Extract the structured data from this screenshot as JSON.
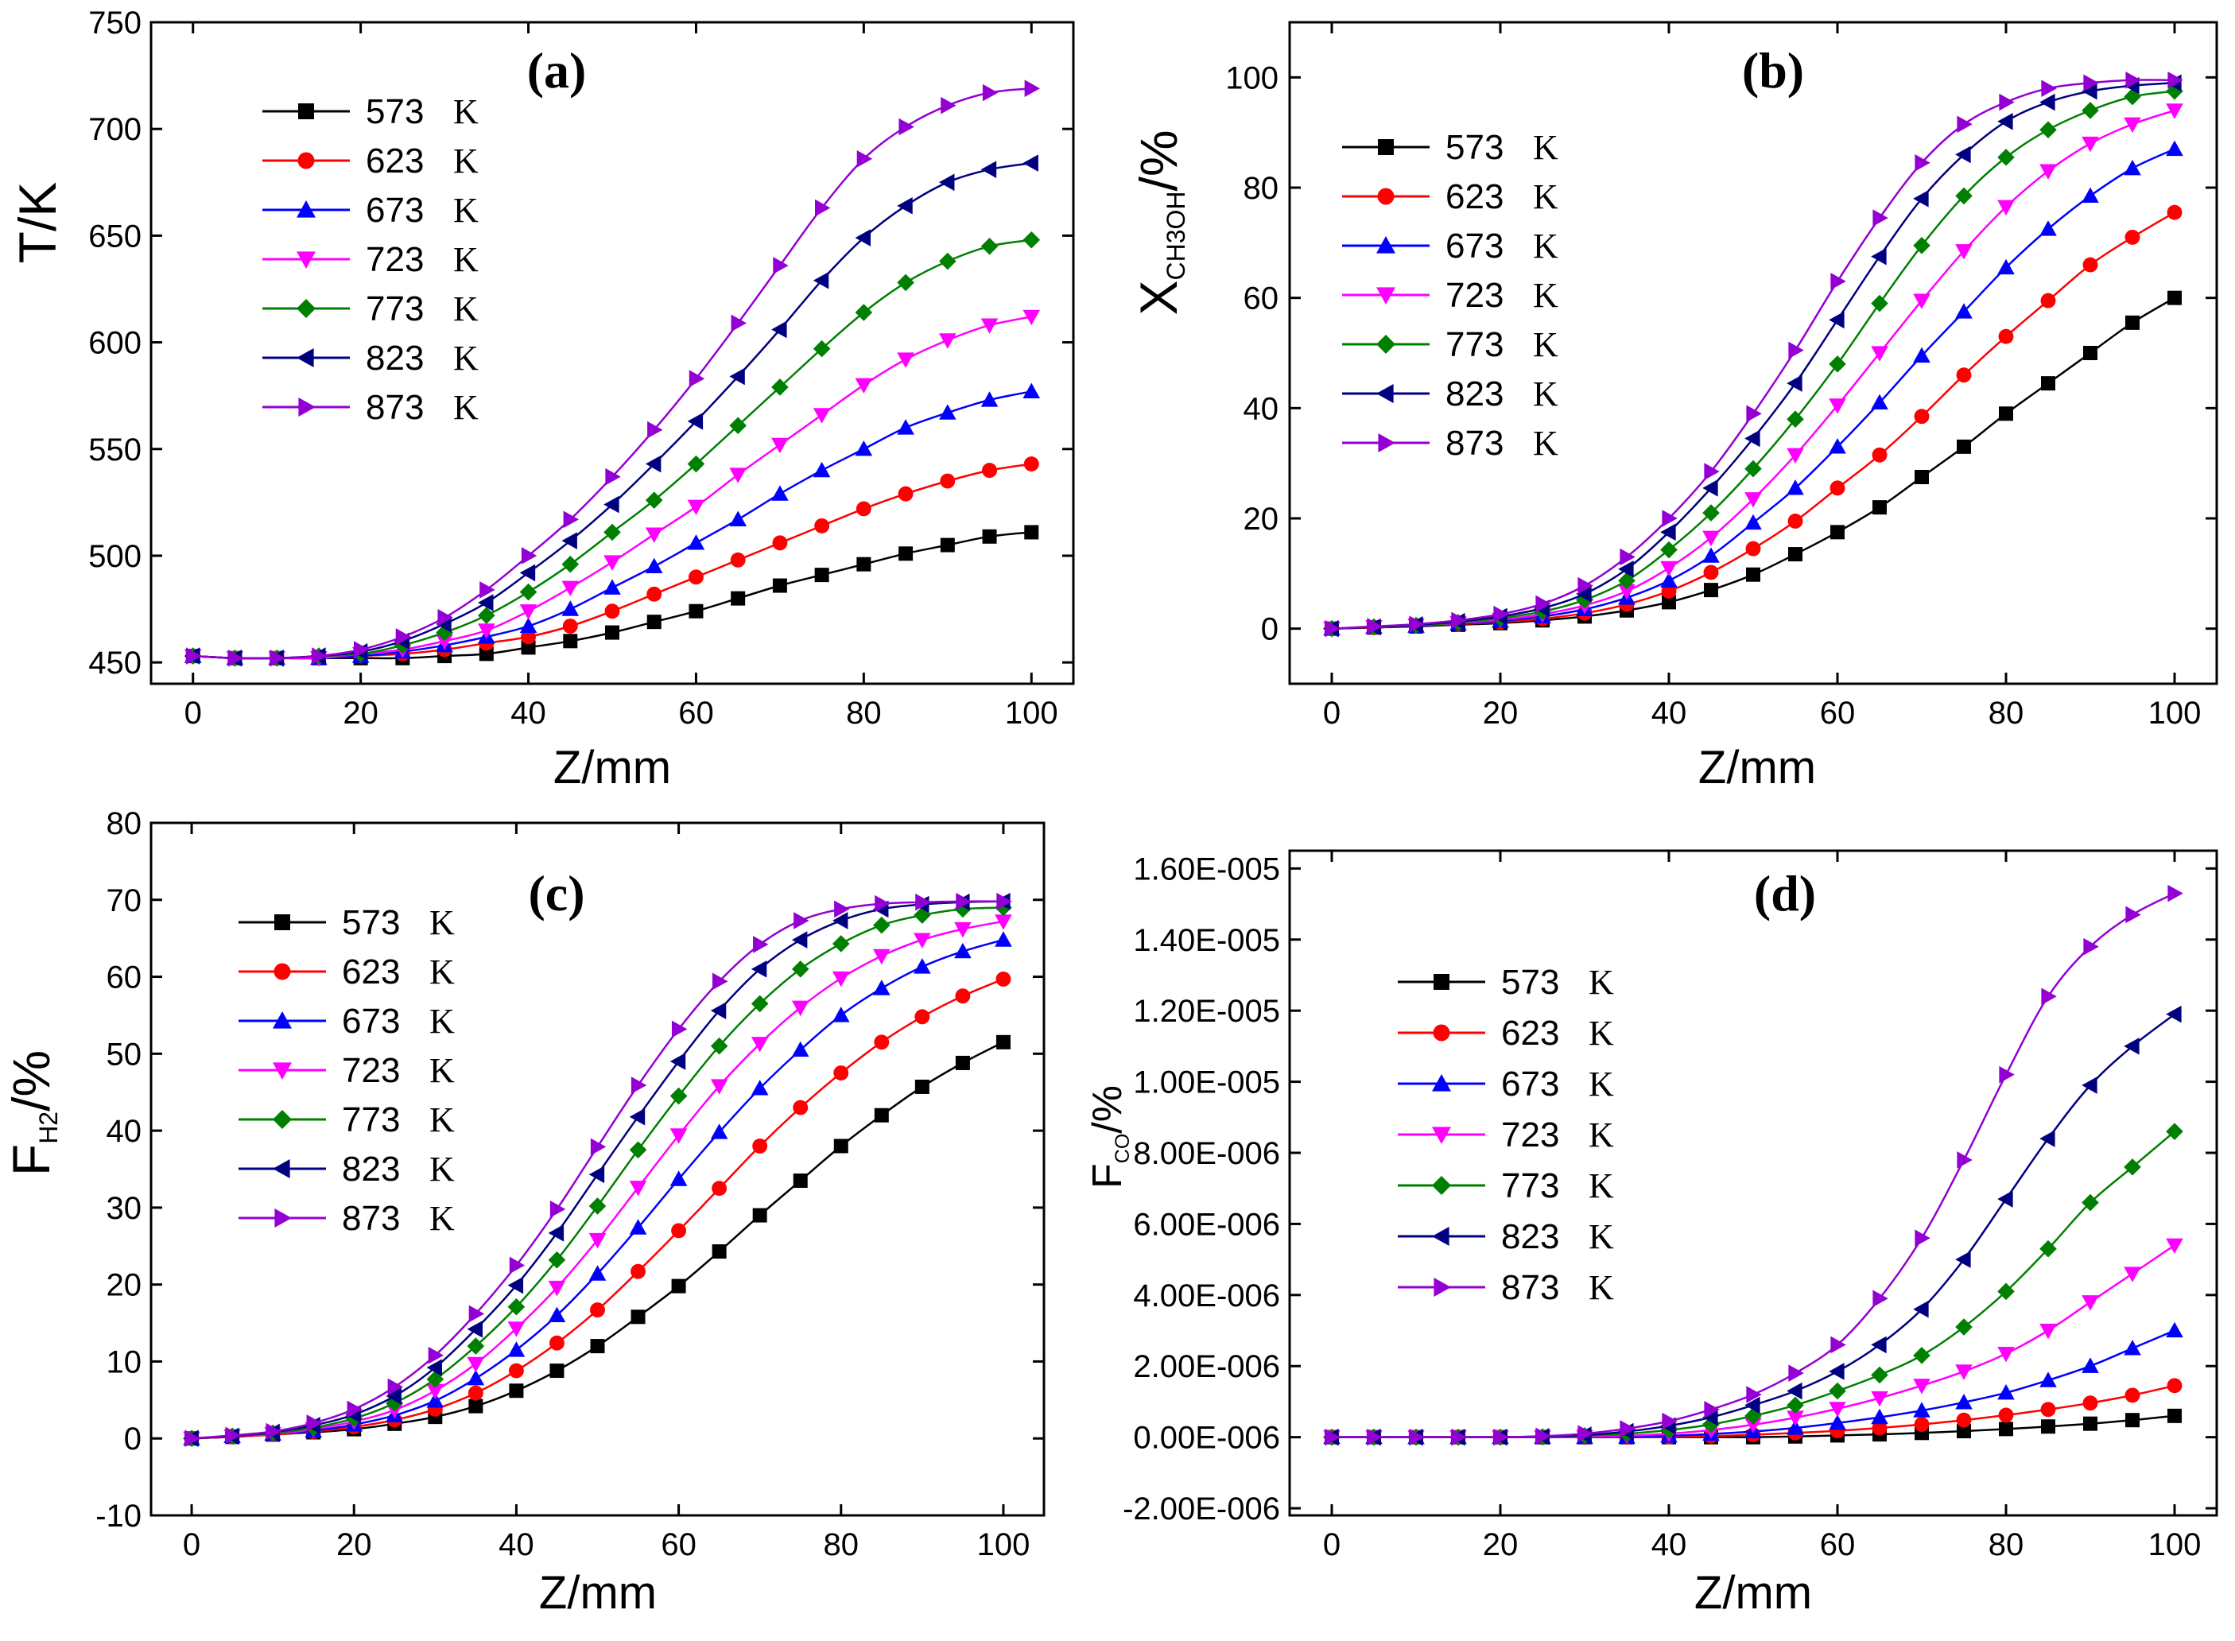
{
  "chart_data": [
    {
      "id": "a",
      "type": "line",
      "panel_label": "(a)",
      "xlabel": "Z/mm",
      "ylabel": "T/K",
      "xlim": [
        -5,
        105
      ],
      "ylim": [
        440,
        750
      ],
      "xticks": [
        0,
        20,
        40,
        60,
        80,
        100
      ],
      "yticks": [
        450,
        500,
        550,
        600,
        650,
        700,
        750
      ],
      "x": [
        0,
        5,
        10,
        15,
        20,
        25,
        30,
        35,
        40,
        45,
        50,
        55,
        60,
        65,
        70,
        75,
        80,
        85,
        90,
        95,
        100
      ],
      "series": [
        {
          "name": "573",
          "unit": "K",
          "color": "#000000",
          "marker": "square",
          "values": [
            453,
            452,
            452,
            452,
            452,
            452,
            453,
            454,
            457,
            460,
            464,
            469,
            474,
            480,
            486,
            491,
            496,
            501,
            505,
            509,
            511
          ]
        },
        {
          "name": "623",
          "unit": "K",
          "color": "#ff0000",
          "marker": "circle",
          "values": [
            453,
            452,
            452,
            452,
            453,
            454,
            456,
            459,
            462,
            467,
            474,
            482,
            490,
            498,
            506,
            514,
            522,
            529,
            535,
            540,
            543
          ]
        },
        {
          "name": "673",
          "unit": "K",
          "color": "#0000ff",
          "marker": "triangle-up",
          "values": [
            453,
            452,
            452,
            452,
            453,
            455,
            458,
            462,
            467,
            475,
            485,
            495,
            506,
            517,
            529,
            540,
            550,
            560,
            567,
            573,
            577
          ]
        },
        {
          "name": "723",
          "unit": "K",
          "color": "#ff00ff",
          "marker": "triangle-down",
          "values": [
            453,
            452,
            452,
            452,
            454,
            456,
            460,
            465,
            474,
            485,
            497,
            510,
            523,
            538,
            552,
            566,
            580,
            592,
            601,
            608,
            612
          ]
        },
        {
          "name": "773",
          "unit": "K",
          "color": "#008000",
          "marker": "diamond",
          "values": [
            453,
            452,
            452,
            453,
            454,
            458,
            464,
            472,
            483,
            496,
            511,
            526,
            543,
            561,
            579,
            597,
            614,
            628,
            638,
            645,
            648
          ]
        },
        {
          "name": "823",
          "unit": "K",
          "color": "#000080",
          "marker": "triangle-left",
          "values": [
            453,
            452,
            452,
            453,
            455,
            460,
            468,
            478,
            492,
            507,
            524,
            543,
            563,
            584,
            606,
            629,
            649,
            664,
            675,
            681,
            684
          ]
        },
        {
          "name": "873",
          "unit": "K",
          "color": "#9400d3",
          "marker": "triangle-right",
          "values": [
            453,
            452,
            452,
            453,
            456,
            462,
            471,
            484,
            500,
            517,
            537,
            559,
            583,
            609,
            636,
            663,
            686,
            701,
            711,
            717,
            719
          ]
        }
      ]
    },
    {
      "id": "b",
      "type": "line",
      "panel_label": "(b)",
      "xlabel": "Z/mm",
      "ylabel": "X",
      "ylabel_sub": "CH3OH",
      "ylabel_suffix": "/%",
      "xlim": [
        -5,
        105
      ],
      "ylim": [
        -10,
        110
      ],
      "xticks": [
        0,
        20,
        40,
        60,
        80,
        100
      ],
      "yticks": [
        0,
        20,
        40,
        60,
        80,
        100
      ],
      "x": [
        0,
        5,
        10,
        15,
        20,
        25,
        30,
        35,
        40,
        45,
        50,
        55,
        60,
        65,
        70,
        75,
        80,
        85,
        90,
        95,
        100
      ],
      "series": [
        {
          "name": "573",
          "unit": "K",
          "color": "#000000",
          "marker": "square",
          "values": [
            0,
            0.2,
            0.4,
            0.7,
            1.0,
            1.5,
            2.2,
            3.3,
            4.8,
            7.0,
            9.8,
            13.5,
            17.5,
            22,
            27.5,
            33,
            39,
            44.5,
            50,
            55.5,
            60
          ]
        },
        {
          "name": "623",
          "unit": "K",
          "color": "#ff0000",
          "marker": "circle",
          "values": [
            0,
            0.2,
            0.5,
            0.8,
            1.2,
            1.8,
            2.8,
            4.4,
            6.8,
            10.2,
            14.5,
            19.5,
            25.5,
            31.5,
            38.5,
            46,
            53,
            59.5,
            66,
            71,
            75.5
          ]
        },
        {
          "name": "673",
          "unit": "K",
          "color": "#0000ff",
          "marker": "triangle-up",
          "values": [
            0,
            0.3,
            0.5,
            0.9,
            1.4,
            2.2,
            3.5,
            5.6,
            8.7,
            13.2,
            19.2,
            25.5,
            33,
            41,
            49.5,
            57.5,
            65.5,
            72.5,
            78.5,
            83.5,
            87
          ]
        },
        {
          "name": "723",
          "unit": "K",
          "color": "#ff00ff",
          "marker": "triangle-down",
          "values": [
            0,
            0.3,
            0.6,
            1.0,
            1.6,
            2.6,
            4.2,
            6.8,
            11.0,
            16.5,
            23.5,
            31.5,
            40.5,
            50.0,
            59.5,
            68.5,
            76.5,
            83,
            88,
            91.5,
            94
          ]
        },
        {
          "name": "773",
          "unit": "K",
          "color": "#008000",
          "marker": "diamond",
          "values": [
            0,
            0.3,
            0.6,
            1.1,
            1.9,
            3.1,
            5.2,
            8.7,
            14.3,
            21.0,
            29.0,
            38.0,
            48.0,
            59.0,
            69.5,
            78.5,
            85.5,
            90.5,
            94,
            96.5,
            97.5
          ]
        },
        {
          "name": "823",
          "unit": "K",
          "color": "#000080",
          "marker": "triangle-left",
          "values": [
            0,
            0.3,
            0.7,
            1.3,
            2.2,
            3.7,
            6.3,
            10.8,
            17.5,
            25.5,
            34.5,
            44.5,
            56.0,
            67.5,
            78,
            86,
            92,
            95.5,
            97.5,
            98.5,
            99
          ]
        },
        {
          "name": "873",
          "unit": "K",
          "color": "#9400d3",
          "marker": "triangle-right",
          "values": [
            0,
            0.4,
            0.8,
            1.5,
            2.6,
            4.5,
            7.8,
            13.0,
            20.0,
            28.5,
            39.0,
            50.5,
            63.0,
            74.5,
            84.5,
            91.5,
            95.5,
            98,
            99,
            99.5,
            99.5
          ]
        }
      ]
    },
    {
      "id": "c",
      "type": "line",
      "panel_label": "(c)",
      "xlabel": "Z/mm",
      "ylabel": "F",
      "ylabel_sub": "H2",
      "ylabel_suffix": "/%",
      "xlim": [
        -5,
        105
      ],
      "ylim": [
        -10,
        80
      ],
      "xticks": [
        0,
        20,
        40,
        60,
        80,
        100
      ],
      "yticks": [
        -10,
        0,
        10,
        20,
        30,
        40,
        50,
        60,
        70,
        80
      ],
      "x": [
        0,
        5,
        10,
        15,
        20,
        25,
        30,
        35,
        40,
        45,
        50,
        55,
        60,
        65,
        70,
        75,
        80,
        85,
        90,
        95,
        100
      ],
      "series": [
        {
          "name": "573",
          "unit": "K",
          "color": "#000000",
          "marker": "square",
          "values": [
            0,
            0.2,
            0.5,
            0.8,
            1.2,
            1.9,
            2.8,
            4.2,
            6.2,
            8.8,
            12,
            15.8,
            19.8,
            24.3,
            29,
            33.5,
            38,
            42,
            45.7,
            48.8,
            51.5
          ]
        },
        {
          "name": "623",
          "unit": "K",
          "color": "#ff0000",
          "marker": "circle",
          "values": [
            0,
            0.2,
            0.5,
            0.9,
            1.5,
            2.4,
            3.8,
            5.9,
            8.8,
            12.4,
            16.7,
            21.7,
            27,
            32.5,
            38,
            43,
            47.5,
            51.5,
            54.8,
            57.5,
            59.7
          ]
        },
        {
          "name": "673",
          "unit": "K",
          "color": "#0000ff",
          "marker": "triangle-up",
          "values": [
            0,
            0.3,
            0.6,
            1.0,
            1.8,
            3.0,
            4.9,
            7.8,
            11.5,
            16.0,
            21.4,
            27.4,
            33.7,
            39.8,
            45.5,
            50.5,
            55,
            58.5,
            61.3,
            63.3,
            64.8
          ]
        },
        {
          "name": "723",
          "unit": "K",
          "color": "#ff00ff",
          "marker": "triangle-down",
          "values": [
            0,
            0.3,
            0.6,
            1.2,
            2.2,
            3.7,
            6.2,
            9.7,
            14.3,
            19.6,
            25.8,
            32.6,
            39.4,
            45.8,
            51.3,
            56,
            59.8,
            62.7,
            64.8,
            66.2,
            67.2
          ]
        },
        {
          "name": "773",
          "unit": "K",
          "color": "#008000",
          "marker": "diamond",
          "values": [
            0,
            0.3,
            0.7,
            1.4,
            2.6,
            4.6,
            7.7,
            12.0,
            17.1,
            23.2,
            30.2,
            37.5,
            44.5,
            51,
            56.5,
            61,
            64.3,
            66.7,
            68,
            68.8,
            69
          ]
        },
        {
          "name": "823",
          "unit": "K",
          "color": "#000080",
          "marker": "triangle-left",
          "values": [
            0,
            0.3,
            0.8,
            1.7,
            3.1,
            5.5,
            9.2,
            14.2,
            19.9,
            26.7,
            34.3,
            41.8,
            49.0,
            55.6,
            61,
            64.8,
            67.3,
            68.8,
            69.4,
            69.7,
            69.8
          ]
        },
        {
          "name": "873",
          "unit": "K",
          "color": "#9400d3",
          "marker": "triangle-right",
          "values": [
            0,
            0.4,
            0.9,
            2.0,
            3.8,
            6.7,
            10.8,
            16.2,
            22.5,
            29.8,
            37.9,
            45.9,
            53.2,
            59.4,
            64.2,
            67.3,
            68.8,
            69.5,
            69.7,
            69.8,
            69.8
          ]
        }
      ]
    },
    {
      "id": "d",
      "type": "line",
      "panel_label": "(d)",
      "xlabel": "Z/mm",
      "ylabel": "F",
      "ylabel_sub": "CO",
      "ylabel_suffix": "/%",
      "xlim": [
        -5,
        105
      ],
      "ylim": [
        -2.2e-06,
        1.65e-05
      ],
      "xticks": [
        0,
        20,
        40,
        60,
        80,
        100
      ],
      "yticks": [
        -2e-06,
        0,
        2e-06,
        4e-06,
        6e-06,
        8e-06,
        1e-05,
        1.2e-05,
        1.4e-05,
        1.6e-05
      ],
      "ytick_labels": [
        "-2.00E-006",
        "0.00E-006",
        "2.00E-006",
        "4.00E-006",
        "6.00E-006",
        "8.00E-006",
        "1.00E-005",
        "1.20E-005",
        "1.40E-005",
        "1.60E-005"
      ],
      "x": [
        0,
        5,
        10,
        15,
        20,
        25,
        30,
        35,
        40,
        45,
        50,
        55,
        60,
        65,
        70,
        75,
        80,
        85,
        90,
        95,
        100
      ],
      "series": [
        {
          "name": "573",
          "unit": "K",
          "color": "#000000",
          "marker": "square",
          "values": [
            0,
            0,
            0,
            0,
            0,
            0,
            0,
            0,
            0,
            0,
            0,
            2e-08,
            5e-08,
            8e-08,
            1.2e-07,
            1.7e-07,
            2.3e-07,
            3e-07,
            3.8e-07,
            4.8e-07,
            6e-07
          ]
        },
        {
          "name": "623",
          "unit": "K",
          "color": "#ff0000",
          "marker": "circle",
          "values": [
            0,
            0,
            0,
            0,
            0,
            0,
            0,
            0,
            1e-08,
            3e-08,
            7e-08,
            1.2e-07,
            1.8e-07,
            2.6e-07,
            3.6e-07,
            4.8e-07,
            6.2e-07,
            7.8e-07,
            9.6e-07,
            1.18e-06,
            1.45e-06
          ]
        },
        {
          "name": "673",
          "unit": "K",
          "color": "#0000ff",
          "marker": "triangle-up",
          "values": [
            0,
            0,
            0,
            0,
            0,
            0,
            0,
            1e-08,
            4e-08,
            9e-08,
            1.6e-07,
            2.6e-07,
            4e-07,
            5.6e-07,
            7.5e-07,
            9.8e-07,
            1.25e-06,
            1.6e-06,
            2e-06,
            2.5e-06,
            3e-06
          ]
        },
        {
          "name": "723",
          "unit": "K",
          "color": "#ff00ff",
          "marker": "triangle-down",
          "values": [
            0,
            0,
            0,
            0,
            0,
            0,
            1e-08,
            4e-08,
            1e-07,
            2e-07,
            3.5e-07,
            5.5e-07,
            8e-07,
            1.1e-06,
            1.45e-06,
            1.85e-06,
            2.35e-06,
            3e-06,
            3.8e-06,
            4.6e-06,
            5.4e-06
          ]
        },
        {
          "name": "773",
          "unit": "K",
          "color": "#008000",
          "marker": "diamond",
          "values": [
            0,
            0,
            0,
            0,
            0,
            1e-08,
            4e-08,
            1e-07,
            2e-07,
            3.6e-07,
            6e-07,
            9e-07,
            1.3e-06,
            1.75e-06,
            2.3e-06,
            3.1e-06,
            4.1e-06,
            5.3e-06,
            6.6e-06,
            7.6e-06,
            8.6e-06
          ]
        },
        {
          "name": "823",
          "unit": "K",
          "color": "#000080",
          "marker": "triangle-left",
          "values": [
            0,
            0,
            0,
            0,
            0,
            2e-08,
            6e-08,
            1.6e-07,
            3.2e-07,
            5.6e-07,
            9e-07,
            1.3e-06,
            1.85e-06,
            2.6e-06,
            3.6e-06,
            5e-06,
            6.7e-06,
            8.4e-06,
            9.9e-06,
            1.1e-05,
            1.19e-05
          ]
        },
        {
          "name": "873",
          "unit": "K",
          "color": "#9400d3",
          "marker": "triangle-right",
          "values": [
            0,
            0,
            0,
            0,
            0,
            3e-08,
            1e-07,
            2.4e-07,
            4.5e-07,
            7.8e-07,
            1.2e-06,
            1.8e-06,
            2.6e-06,
            3.9e-06,
            5.6e-06,
            7.8e-06,
            1.02e-05,
            1.24e-05,
            1.38e-05,
            1.47e-05,
            1.53e-05
          ]
        }
      ]
    }
  ]
}
